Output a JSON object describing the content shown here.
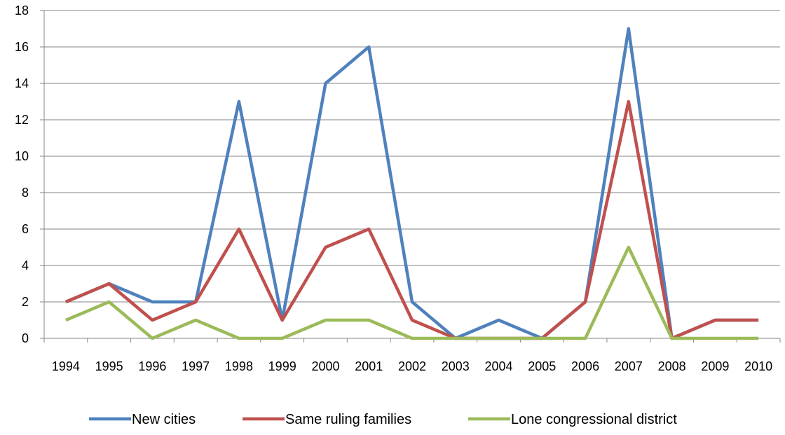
{
  "chart_data": {
    "type": "line",
    "title": "",
    "xlabel": "",
    "ylabel": "",
    "ylim": [
      0,
      18
    ],
    "y_ticks": [
      0,
      2,
      4,
      6,
      8,
      10,
      12,
      14,
      16,
      18
    ],
    "grid": true,
    "legend_position": "bottom",
    "x": [
      "1994",
      "1995",
      "1996",
      "1997",
      "1998",
      "1999",
      "2000",
      "2001",
      "2002",
      "2003",
      "2004",
      "2005",
      "2006",
      "2007",
      "2008",
      "2009",
      "2010"
    ],
    "series": [
      {
        "name": "New cities",
        "color": "#4f81bd",
        "values": [
          2,
          3,
          2,
          2,
          13,
          1,
          14,
          16,
          2,
          0,
          1,
          0,
          2,
          17,
          0,
          1,
          1
        ]
      },
      {
        "name": "Same ruling families",
        "color": "#c0504d",
        "values": [
          2,
          3,
          1,
          2,
          6,
          1,
          5,
          6,
          1,
          0,
          0,
          0,
          2,
          13,
          0,
          1,
          1
        ]
      },
      {
        "name": "Lone congressional district",
        "color": "#9bbb59",
        "values": [
          1,
          2,
          0,
          1,
          0,
          0,
          1,
          1,
          0,
          0,
          0,
          0,
          0,
          5,
          0,
          0,
          0
        ]
      }
    ]
  }
}
